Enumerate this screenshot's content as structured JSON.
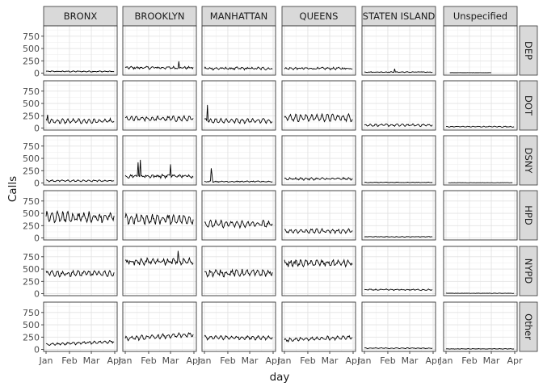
{
  "chart_data": {
    "type": "line",
    "layout": "facet_grid",
    "xlabel": "day",
    "ylabel": "Calls",
    "x_ticks": [
      "Jan",
      "Feb",
      "Mar",
      "Apr"
    ],
    "y_ticks": [
      0,
      250,
      500,
      750
    ],
    "ylim": [
      -40,
      960
    ],
    "xlim": [
      "2016-01-01",
      "2016-04-01"
    ],
    "grid": true,
    "facet_background": "#d9d9d9",
    "panel_border": "#333333",
    "line_color": "#000000",
    "columns": [
      "BRONX",
      "BROOKLYN",
      "MANHATTAN",
      "QUEENS",
      "STATEN ISLAND",
      "Unspecified"
    ],
    "rows": [
      "DEP",
      "DOT",
      "DSNY",
      "HPD",
      "NYPD",
      "Other"
    ],
    "series": {
      "DEP": {
        "BRONX": {
          "level": 35,
          "amp": 12,
          "noise": 8
        },
        "BROOKLYN": {
          "level": 110,
          "amp": 25,
          "noise": 20,
          "spikes": [
            [
              71,
              240
            ]
          ]
        },
        "MANHATTAN": {
          "level": 95,
          "amp": 30,
          "noise": 20
        },
        "QUEENS": {
          "level": 95,
          "amp": 25,
          "noise": 18
        },
        "STATEN ISLAND": {
          "level": 22,
          "amp": 8,
          "noise": 6,
          "spikes": [
            [
              40,
              90
            ]
          ]
        },
        "Unspecified": {
          "level": 10,
          "amp": 0,
          "noise": 2,
          "start": 5,
          "end": 60
        }
      },
      "DOT": {
        "BRONX": {
          "level": 140,
          "amp": 75,
          "noise": 20,
          "spikes": [
            [
              2,
              270
            ]
          ]
        },
        "BROOKLYN": {
          "level": 190,
          "amp": 75,
          "noise": 25
        },
        "MANHATTAN": {
          "level": 150,
          "amp": 80,
          "noise": 20,
          "spikes": [
            [
              4,
              470
            ]
          ]
        },
        "QUEENS": {
          "level": 210,
          "amp": 110,
          "noise": 30
        },
        "STATEN ISLAND": {
          "level": 60,
          "amp": 35,
          "noise": 12
        },
        "Unspecified": {
          "level": 30,
          "amp": 12,
          "noise": 6
        }
      },
      "DSNY": {
        "BRONX": {
          "level": 45,
          "amp": 25,
          "noise": 10
        },
        "BROOKLYN": {
          "level": 140,
          "amp": 40,
          "noise": 25,
          "spikes": [
            [
              17,
              420
            ],
            [
              20,
              470
            ],
            [
              60,
              380
            ]
          ]
        },
        "MANHATTAN": {
          "level": 30,
          "amp": 12,
          "noise": 8,
          "spikes": [
            [
              9,
              300
            ],
            [
              10,
              180
            ]
          ]
        },
        "QUEENS": {
          "level": 85,
          "amp": 30,
          "noise": 15
        },
        "STATEN ISLAND": {
          "level": 12,
          "amp": 6,
          "noise": 4
        },
        "Unspecified": {
          "level": 6,
          "amp": 0,
          "noise": 2,
          "start": 3,
          "end": 88
        }
      },
      "HPD": {
        "BRONX": {
          "level": 420,
          "amp": 150,
          "noise": 50
        },
        "BROOKLYN": {
          "level": 380,
          "amp": 140,
          "noise": 45
        },
        "MANHATTAN": {
          "level": 280,
          "amp": 100,
          "noise": 35
        },
        "QUEENS": {
          "level": 140,
          "amp": 65,
          "noise": 20
        },
        "STATEN ISLAND": {
          "level": 25,
          "amp": 8,
          "noise": 5
        },
        "Unspecified": {
          "level": 0,
          "amp": 0,
          "noise": 0,
          "hidden": true
        }
      },
      "NYPD": {
        "BRONX": {
          "level": 410,
          "amp": 90,
          "noise": 35
        },
        "BROOKLYN": {
          "level": 650,
          "amp": 90,
          "noise": 40,
          "spikes": [
            [
              70,
              870
            ]
          ]
        },
        "MANHATTAN": {
          "level": 420,
          "amp": 90,
          "noise": 40
        },
        "QUEENS": {
          "level": 620,
          "amp": 90,
          "noise": 40
        },
        "STATEN ISLAND": {
          "level": 80,
          "amp": 15,
          "noise": 8
        },
        "Unspecified": {
          "level": 8,
          "amp": 3,
          "noise": 3
        }
      },
      "Other": {
        "BRONX": {
          "level": 100,
          "amp": 40,
          "noise": 15,
          "trend": 60
        },
        "BROOKLYN": {
          "level": 220,
          "amp": 70,
          "noise": 20,
          "trend": 80
        },
        "MANHATTAN": {
          "level": 240,
          "amp": 65,
          "noise": 20
        },
        "QUEENS": {
          "level": 190,
          "amp": 60,
          "noise": 20,
          "trend": 60
        },
        "STATEN ISLAND": {
          "level": 25,
          "amp": 10,
          "noise": 5
        },
        "Unspecified": {
          "level": 12,
          "amp": 6,
          "noise": 3
        }
      }
    }
  }
}
